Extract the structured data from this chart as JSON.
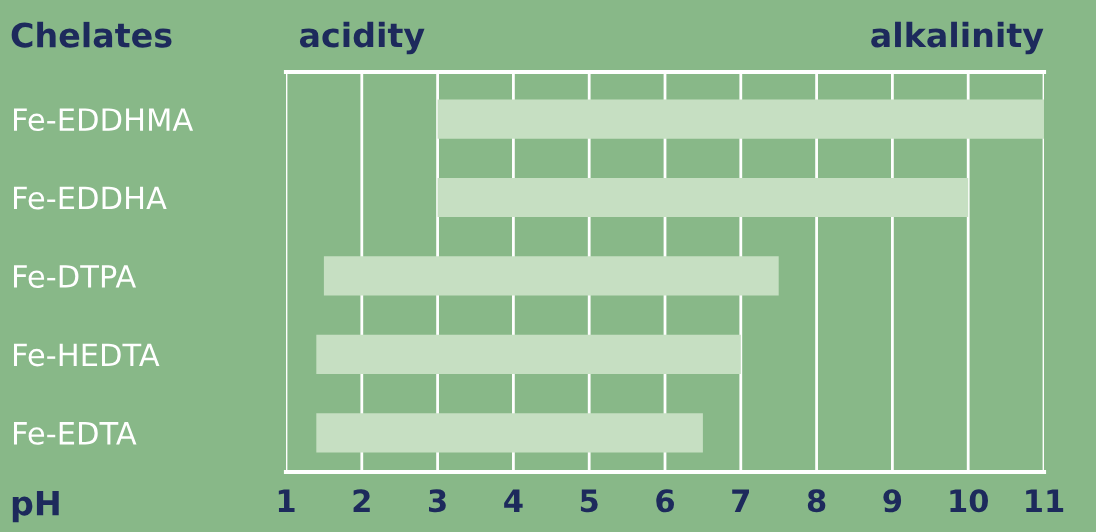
{
  "chart_data": {
    "type": "bar",
    "orientation": "horizontal",
    "ylabel": "Chelates",
    "xlabel": "pH",
    "annotations": [
      "acidity",
      "alkalinity"
    ],
    "categories": [
      "Fe-EDDHMA",
      "Fe-EDDHA",
      "Fe-DTPA",
      "Fe-HEDTA",
      "Fe-EDTA"
    ],
    "base": [
      3,
      3,
      1.5,
      1.4,
      1.4
    ],
    "values": [
      8,
      7,
      6,
      5.6,
      5.1
    ],
    "color": "#c6dfc2",
    "xlim": [
      1,
      11
    ],
    "xticks": [
      1,
      2,
      3,
      4,
      5,
      6,
      7,
      8,
      9,
      10,
      11
    ],
    "grid": "x",
    "legend": false
  }
}
